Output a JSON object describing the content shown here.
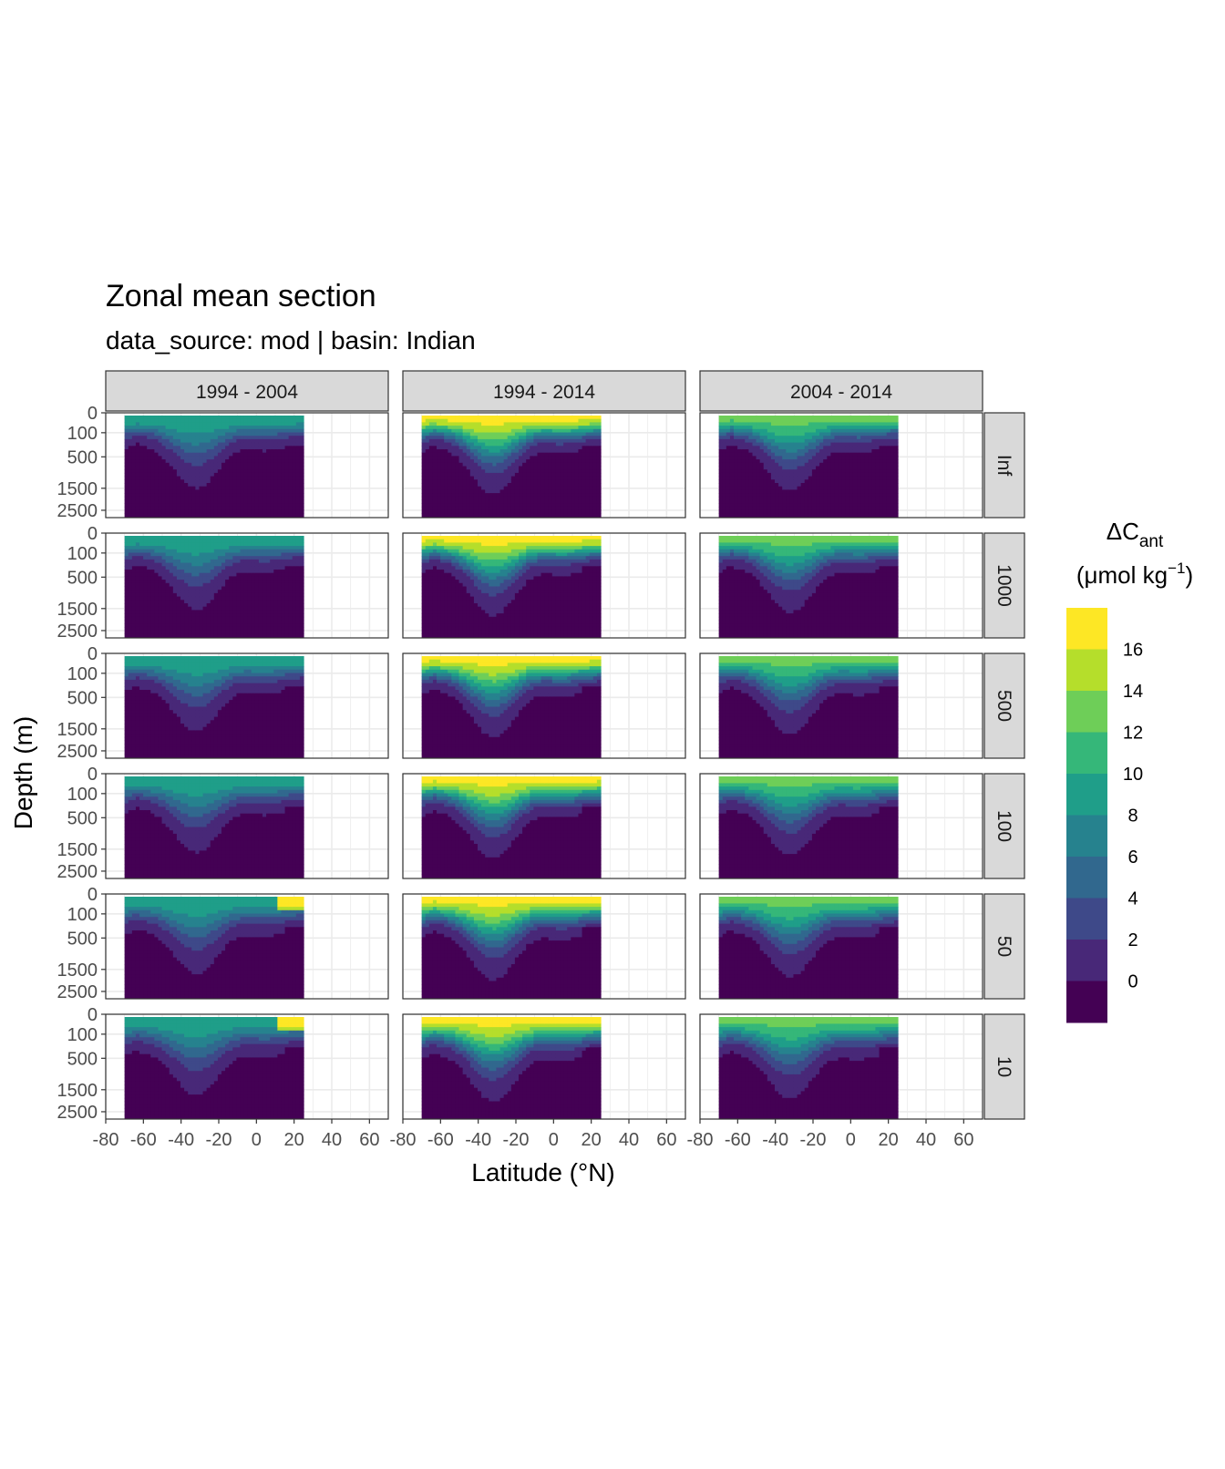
{
  "title": "Zonal mean section",
  "subtitle": "data_source:  mod | basin: Indian",
  "chart_data": {
    "type": "heatmap",
    "facet_columns": [
      "1994 - 2004",
      "1994 - 2014",
      "2004 - 2014"
    ],
    "facet_rows": [
      "Inf",
      "1000",
      "500",
      "100",
      "50",
      "10"
    ],
    "xlabel": "Latitude (°N)",
    "ylabel": "Depth (m)",
    "xlim": [
      -80,
      70
    ],
    "x_ticks": [
      "-80",
      "-60",
      "-40",
      "-20",
      "0",
      "20",
      "40",
      "60"
    ],
    "ylim": [
      0,
      3000
    ],
    "y_ticks": [
      "0",
      "100",
      "500",
      "1500",
      "2500"
    ],
    "data_lat_range": [
      -70,
      25
    ],
    "legend": {
      "title_main": "ΔC",
      "title_sub": "ant",
      "unit": "(μmol kg",
      "unit_sup": "−1",
      "unit_close": ")",
      "position": "right",
      "labels": [
        "16",
        "14",
        "12",
        "10",
        "8",
        "6",
        "4",
        "2",
        "0"
      ],
      "colors": [
        "#fde725",
        "#b5de2b",
        "#6ece58",
        "#35b779",
        "#1f9e89",
        "#26828e",
        "#31688e",
        "#3e4989",
        "#482878",
        "#440154"
      ]
    },
    "surface_maximum_by_column": [
      10,
      17,
      13
    ]
  }
}
